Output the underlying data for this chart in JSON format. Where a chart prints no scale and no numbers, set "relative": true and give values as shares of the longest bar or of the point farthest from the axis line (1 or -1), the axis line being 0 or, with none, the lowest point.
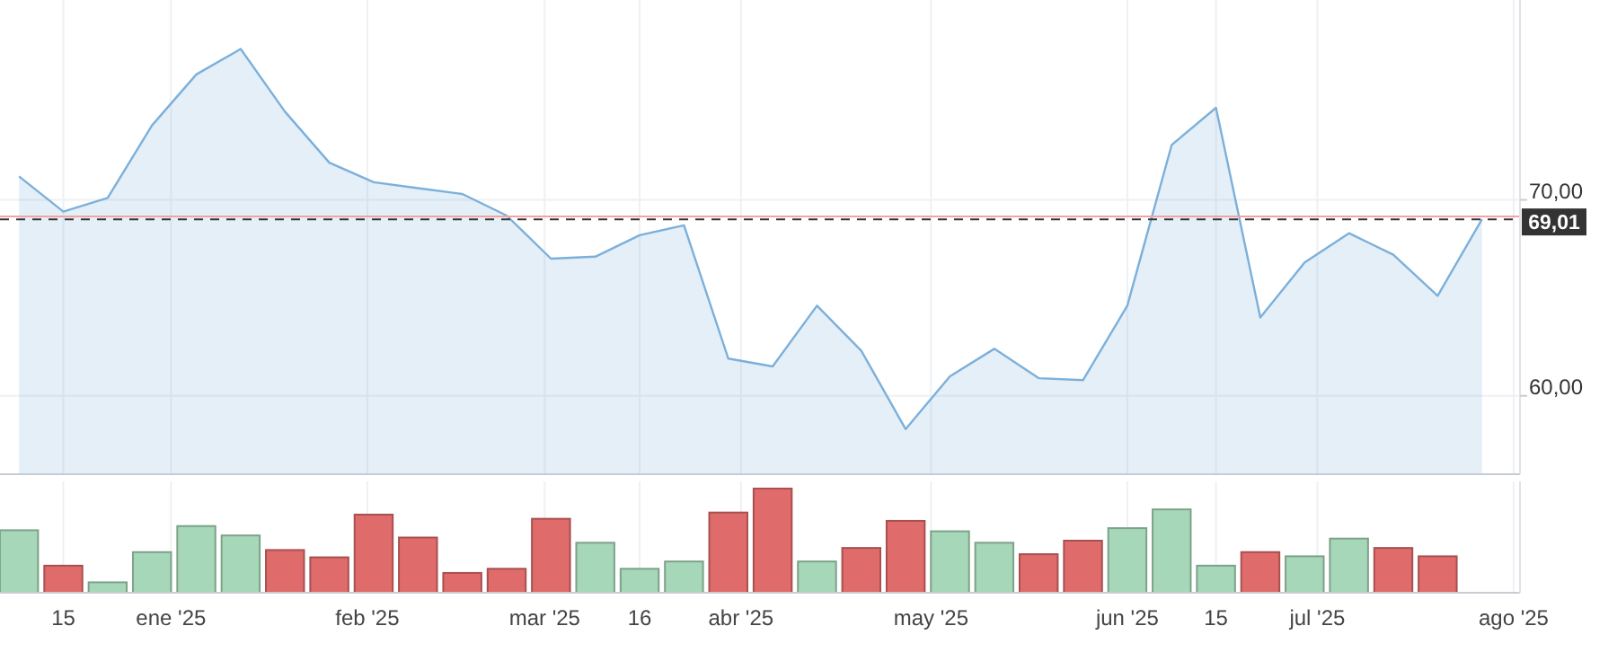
{
  "chart_data": [
    {
      "type": "area",
      "xlim": [
        "2024-12-05",
        "2025-08-02"
      ],
      "ylim": [
        56,
        80.2
      ],
      "xticks": [
        {
          "value": "2024-12-15",
          "label": null
        },
        {
          "value": "2025-01-01",
          "label": null
        },
        {
          "value": "2025-02-01",
          "label": null
        },
        {
          "value": "2025-03-01",
          "label": null
        },
        {
          "value": "2025-03-16",
          "label": null
        },
        {
          "value": "2025-04-01",
          "label": null
        },
        {
          "value": "2025-05-01",
          "label": null
        },
        {
          "value": "2025-06-01",
          "label": null
        },
        {
          "value": "2025-06-15",
          "label": null
        },
        {
          "value": "2025-07-01",
          "label": null
        },
        {
          "value": "2025-08-01",
          "label": null
        }
      ],
      "yticks": [
        {
          "value": 60,
          "label": "60,00"
        },
        {
          "value": 70,
          "label": "70,00"
        }
      ],
      "tick_labels": "y",
      "grid": true,
      "series": [
        {
          "color": "#7cb0da",
          "x": [
            "2024-12-08",
            "2024-12-15",
            "2024-12-22",
            "2024-12-29",
            "2025-01-05",
            "2025-01-12",
            "2025-01-19",
            "2025-01-26",
            "2025-02-02",
            "2025-02-09",
            "2025-02-16",
            "2025-02-23",
            "2025-03-02",
            "2025-03-09",
            "2025-03-16",
            "2025-03-23",
            "2025-03-30",
            "2025-04-06",
            "2025-04-13",
            "2025-04-20",
            "2025-04-27",
            "2025-05-04",
            "2025-05-11",
            "2025-05-18",
            "2025-05-25",
            "2025-06-01",
            "2025-06-08",
            "2025-06-15",
            "2025-06-22",
            "2025-06-29",
            "2025-07-06",
            "2025-07-13",
            "2025-07-20",
            "2025-07-27"
          ],
          "values": [
            71.2,
            69.4,
            70.1,
            73.8,
            76.4,
            77.7,
            74.5,
            71.9,
            70.9,
            70.6,
            70.3,
            69.2,
            67.0,
            67.1,
            68.2,
            68.7,
            61.9,
            61.5,
            64.6,
            62.3,
            58.3,
            61.0,
            62.4,
            60.9,
            60.8,
            64.6,
            72.8,
            74.7,
            64.0,
            66.8,
            68.3,
            67.2,
            65.1,
            69.01
          ]
        }
      ],
      "ref_lines": [
        {
          "axis": "y",
          "value": 69.15,
          "color": "#f4a3a3",
          "line_style": "solid"
        },
        {
          "axis": "y",
          "value": 69.01,
          "label": "69,01",
          "color": "#333333",
          "line_style": "dashed"
        }
      ]
    },
    {
      "type": "bar",
      "relative": true,
      "xlim": [
        "2024-12-05",
        "2025-08-02"
      ],
      "xticks": [
        {
          "value": "2024-12-15",
          "label": "15"
        },
        {
          "value": "2025-01-01",
          "label": "ene '25"
        },
        {
          "value": "2025-02-01",
          "label": "feb '25"
        },
        {
          "value": "2025-03-01",
          "label": "mar '25"
        },
        {
          "value": "2025-03-16",
          "label": "16"
        },
        {
          "value": "2025-04-01",
          "label": "abr '25"
        },
        {
          "value": "2025-05-01",
          "label": "may '25"
        },
        {
          "value": "2025-06-01",
          "label": "jun '25"
        },
        {
          "value": "2025-06-15",
          "label": "15"
        },
        {
          "value": "2025-07-01",
          "label": "jul '25"
        },
        {
          "value": "2025-08-01",
          "label": "ago '25"
        }
      ],
      "grid": "x",
      "x": [
        "2024-12-08",
        "2024-12-15",
        "2024-12-22",
        "2024-12-29",
        "2025-01-05",
        "2025-01-12",
        "2025-01-19",
        "2025-01-26",
        "2025-02-02",
        "2025-02-09",
        "2025-02-16",
        "2025-02-23",
        "2025-03-02",
        "2025-03-09",
        "2025-03-16",
        "2025-03-23",
        "2025-03-30",
        "2025-04-06",
        "2025-04-13",
        "2025-04-20",
        "2025-04-27",
        "2025-05-04",
        "2025-05-11",
        "2025-05-18",
        "2025-05-25",
        "2025-06-01",
        "2025-06-08",
        "2025-06-15",
        "2025-06-22",
        "2025-06-29",
        "2025-07-06",
        "2025-07-13",
        "2025-07-20"
      ],
      "values": [
        0.6,
        0.26,
        0.1,
        0.39,
        0.64,
        0.55,
        0.41,
        0.34,
        0.75,
        0.53,
        0.19,
        0.23,
        0.71,
        0.48,
        0.23,
        0.3,
        0.77,
        1.0,
        0.3,
        0.43,
        0.69,
        0.59,
        0.48,
        0.37,
        0.5,
        0.62,
        0.8,
        0.26,
        0.39,
        0.35,
        0.52,
        0.43,
        0.35
      ],
      "colors": [
        "#a6d7b8",
        "#e06b6b",
        "#a6d7b8",
        "#a6d7b8",
        "#a6d7b8",
        "#a6d7b8",
        "#e06b6b",
        "#e06b6b",
        "#e06b6b",
        "#e06b6b",
        "#e06b6b",
        "#e06b6b",
        "#e06b6b",
        "#a6d7b8",
        "#a6d7b8",
        "#a6d7b8",
        "#e06b6b",
        "#e06b6b",
        "#a6d7b8",
        "#e06b6b",
        "#e06b6b",
        "#a6d7b8",
        "#a6d7b8",
        "#e06b6b",
        "#e06b6b",
        "#a6d7b8",
        "#a6d7b8",
        "#a6d7b8",
        "#e06b6b",
        "#a6d7b8",
        "#a6d7b8",
        "#e06b6b",
        "#e06b6b"
      ]
    }
  ]
}
